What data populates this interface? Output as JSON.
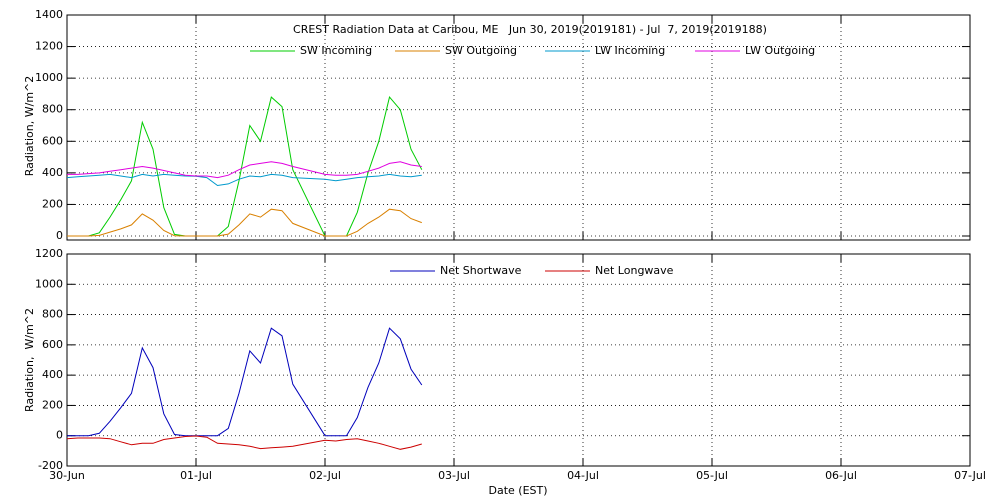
{
  "chart_data": [
    {
      "type": "line",
      "title": "CREST Radiation Data at Caribou, ME   Jun 30, 2019(2019181) - Jul  7, 2019(2019188)",
      "ylabel": "Radiation, W/m^2",
      "x": [
        0,
        2,
        4,
        6,
        8,
        10,
        12,
        14,
        16,
        18,
        20,
        22,
        24,
        26,
        28,
        30,
        32,
        34,
        36,
        38,
        40,
        42,
        48,
        50,
        52,
        54,
        56,
        58,
        60,
        62,
        64,
        66
      ],
      "xlim": [
        0,
        168
      ],
      "xticks": [
        0,
        24,
        48,
        72,
        96,
        120,
        144,
        168
      ],
      "ylim": [
        0,
        1400
      ],
      "yticks": [
        0,
        200,
        400,
        600,
        800,
        1000,
        1200,
        1400
      ],
      "grid": true,
      "series": [
        {
          "name": "SW Incoming",
          "color": "#00cc00",
          "values": [
            0,
            0,
            0,
            20,
            120,
            230,
            350,
            720,
            550,
            180,
            10,
            0,
            0,
            0,
            0,
            60,
            350,
            700,
            600,
            880,
            820,
            420,
            0,
            0,
            0,
            150,
            400,
            600,
            880,
            800,
            550,
            420
          ]
        },
        {
          "name": "SW Outgoing",
          "color": "#d98000",
          "values": [
            0,
            0,
            0,
            4,
            25,
            45,
            70,
            140,
            100,
            35,
            2,
            0,
            0,
            0,
            0,
            12,
            70,
            140,
            120,
            170,
            160,
            80,
            0,
            0,
            0,
            30,
            80,
            120,
            170,
            160,
            110,
            85
          ]
        },
        {
          "name": "LW Incoming",
          "color": "#0099cc",
          "values": [
            370,
            375,
            380,
            385,
            390,
            380,
            370,
            390,
            380,
            390,
            385,
            380,
            378,
            370,
            320,
            330,
            360,
            380,
            375,
            390,
            385,
            370,
            360,
            350,
            360,
            370,
            375,
            380,
            390,
            380,
            375,
            385
          ]
        },
        {
          "name": "LW Outgoing",
          "color": "#e000e0",
          "values": [
            390,
            390,
            395,
            400,
            410,
            420,
            430,
            440,
            430,
            415,
            400,
            385,
            380,
            380,
            370,
            385,
            420,
            450,
            460,
            470,
            460,
            440,
            390,
            385,
            385,
            390,
            410,
            430,
            460,
            470,
            450,
            440
          ]
        }
      ]
    },
    {
      "type": "line",
      "ylabel": "Radiation,  W/m^2",
      "xlabel": "Date (EST)",
      "x": [
        0,
        2,
        4,
        6,
        8,
        10,
        12,
        14,
        16,
        18,
        20,
        22,
        24,
        26,
        28,
        30,
        32,
        34,
        36,
        38,
        40,
        42,
        48,
        50,
        52,
        54,
        56,
        58,
        60,
        62,
        64,
        66
      ],
      "xlim": [
        0,
        168
      ],
      "xticks": [
        {
          "value": 0,
          "label": "30-Jun"
        },
        {
          "value": 24,
          "label": "01-Jul"
        },
        {
          "value": 48,
          "label": "02-Jul"
        },
        {
          "value": 72,
          "label": "03-Jul"
        },
        {
          "value": 96,
          "label": "04-Jul"
        },
        {
          "value": 120,
          "label": "05-Jul"
        },
        {
          "value": 144,
          "label": "06-Jul"
        },
        {
          "value": 168,
          "label": "07-Jul"
        }
      ],
      "ylim": [
        -200,
        1200
      ],
      "yticks": [
        -200,
        0,
        200,
        400,
        600,
        800,
        1000,
        1200
      ],
      "grid": true,
      "series": [
        {
          "name": "Net Shortwave",
          "color": "#0000bb",
          "values": [
            0,
            0,
            0,
            16,
            95,
            185,
            280,
            580,
            450,
            145,
            8,
            0,
            0,
            0,
            0,
            48,
            280,
            560,
            480,
            710,
            660,
            340,
            0,
            0,
            0,
            120,
            320,
            480,
            710,
            640,
            440,
            335
          ]
        },
        {
          "name": "Net Longwave",
          "color": "#cc0000",
          "values": [
            -20,
            -15,
            -15,
            -15,
            -20,
            -40,
            -60,
            -50,
            -50,
            -25,
            -15,
            -5,
            -2,
            -10,
            -50,
            -55,
            -60,
            -70,
            -85,
            -80,
            -75,
            -70,
            -30,
            -35,
            -25,
            -20,
            -35,
            -50,
            -70,
            -90,
            -75,
            -55
          ]
        }
      ]
    }
  ]
}
